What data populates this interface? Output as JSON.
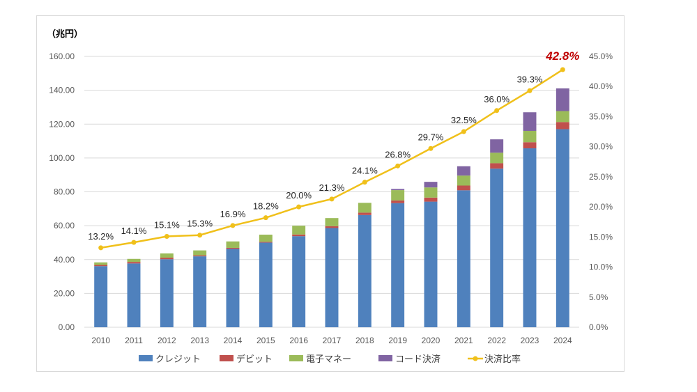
{
  "chart_data": {
    "type": "bar",
    "stacked": true,
    "title": "",
    "unit_label": "（兆円）",
    "xlabel": "",
    "ylabel": "（兆円）",
    "ylim": [
      0,
      160
    ],
    "y_ticks": [
      "0.00",
      "20.00",
      "40.00",
      "60.00",
      "80.00",
      "100.00",
      "120.00",
      "140.00",
      "160.00"
    ],
    "y2lim": [
      0,
      45
    ],
    "y2_ticks": [
      "0.0%",
      "5.0%",
      "10.0%",
      "15.0%",
      "20.0%",
      "25.0%",
      "30.0%",
      "35.0%",
      "40.0%",
      "45.0%"
    ],
    "grid": true,
    "legend_position": "bottom",
    "categories": [
      "2010",
      "2011",
      "2012",
      "2013",
      "2014",
      "2015",
      "2016",
      "2017",
      "2018",
      "2019",
      "2020",
      "2021",
      "2022",
      "2023",
      "2024"
    ],
    "series": [
      {
        "name": "クレジット",
        "type": "bar",
        "color": "#4f81bd",
        "values": [
          36.1,
          37.7,
          40.2,
          41.9,
          46.3,
          50.0,
          53.8,
          58.6,
          66.3,
          73.3,
          74.2,
          80.9,
          93.7,
          105.7,
          117.0
        ]
      },
      {
        "name": "デビット",
        "type": "bar",
        "color": "#c0504d",
        "values": [
          0.7,
          0.9,
          0.9,
          0.6,
          0.6,
          0.5,
          1.0,
          1.1,
          1.4,
          1.6,
          2.4,
          2.8,
          3.2,
          3.6,
          4.2
        ]
      },
      {
        "name": "電子マネー",
        "type": "bar",
        "color": "#9bbb59",
        "values": [
          1.5,
          1.8,
          2.5,
          2.9,
          3.8,
          4.2,
          5.2,
          4.8,
          5.8,
          6.1,
          6.0,
          5.9,
          6.2,
          6.7,
          6.5
        ]
      },
      {
        "name": "コード決済",
        "type": "bar",
        "color": "#8064a2",
        "values": [
          0,
          0,
          0,
          0,
          0,
          0,
          0,
          0,
          0,
          0.7,
          3.3,
          5.5,
          7.9,
          11.0,
          13.4
        ]
      },
      {
        "name": "決済比率",
        "type": "line",
        "axis": "right",
        "color": "#f0c01a",
        "values": [
          13.2,
          14.1,
          15.1,
          15.3,
          16.9,
          18.2,
          20.0,
          21.3,
          24.1,
          26.8,
          29.7,
          32.5,
          36.0,
          39.3,
          42.8
        ],
        "labels": [
          "13.2%",
          "14.1%",
          "15.1%",
          "15.3%",
          "16.9%",
          "18.2%",
          "20.0%",
          "21.3%",
          "24.1%",
          "26.8%",
          "29.7%",
          "32.5%",
          "36.0%",
          "39.3%",
          "42.8%"
        ],
        "highlight_last": true,
        "highlight_color": "#c00000"
      }
    ]
  }
}
